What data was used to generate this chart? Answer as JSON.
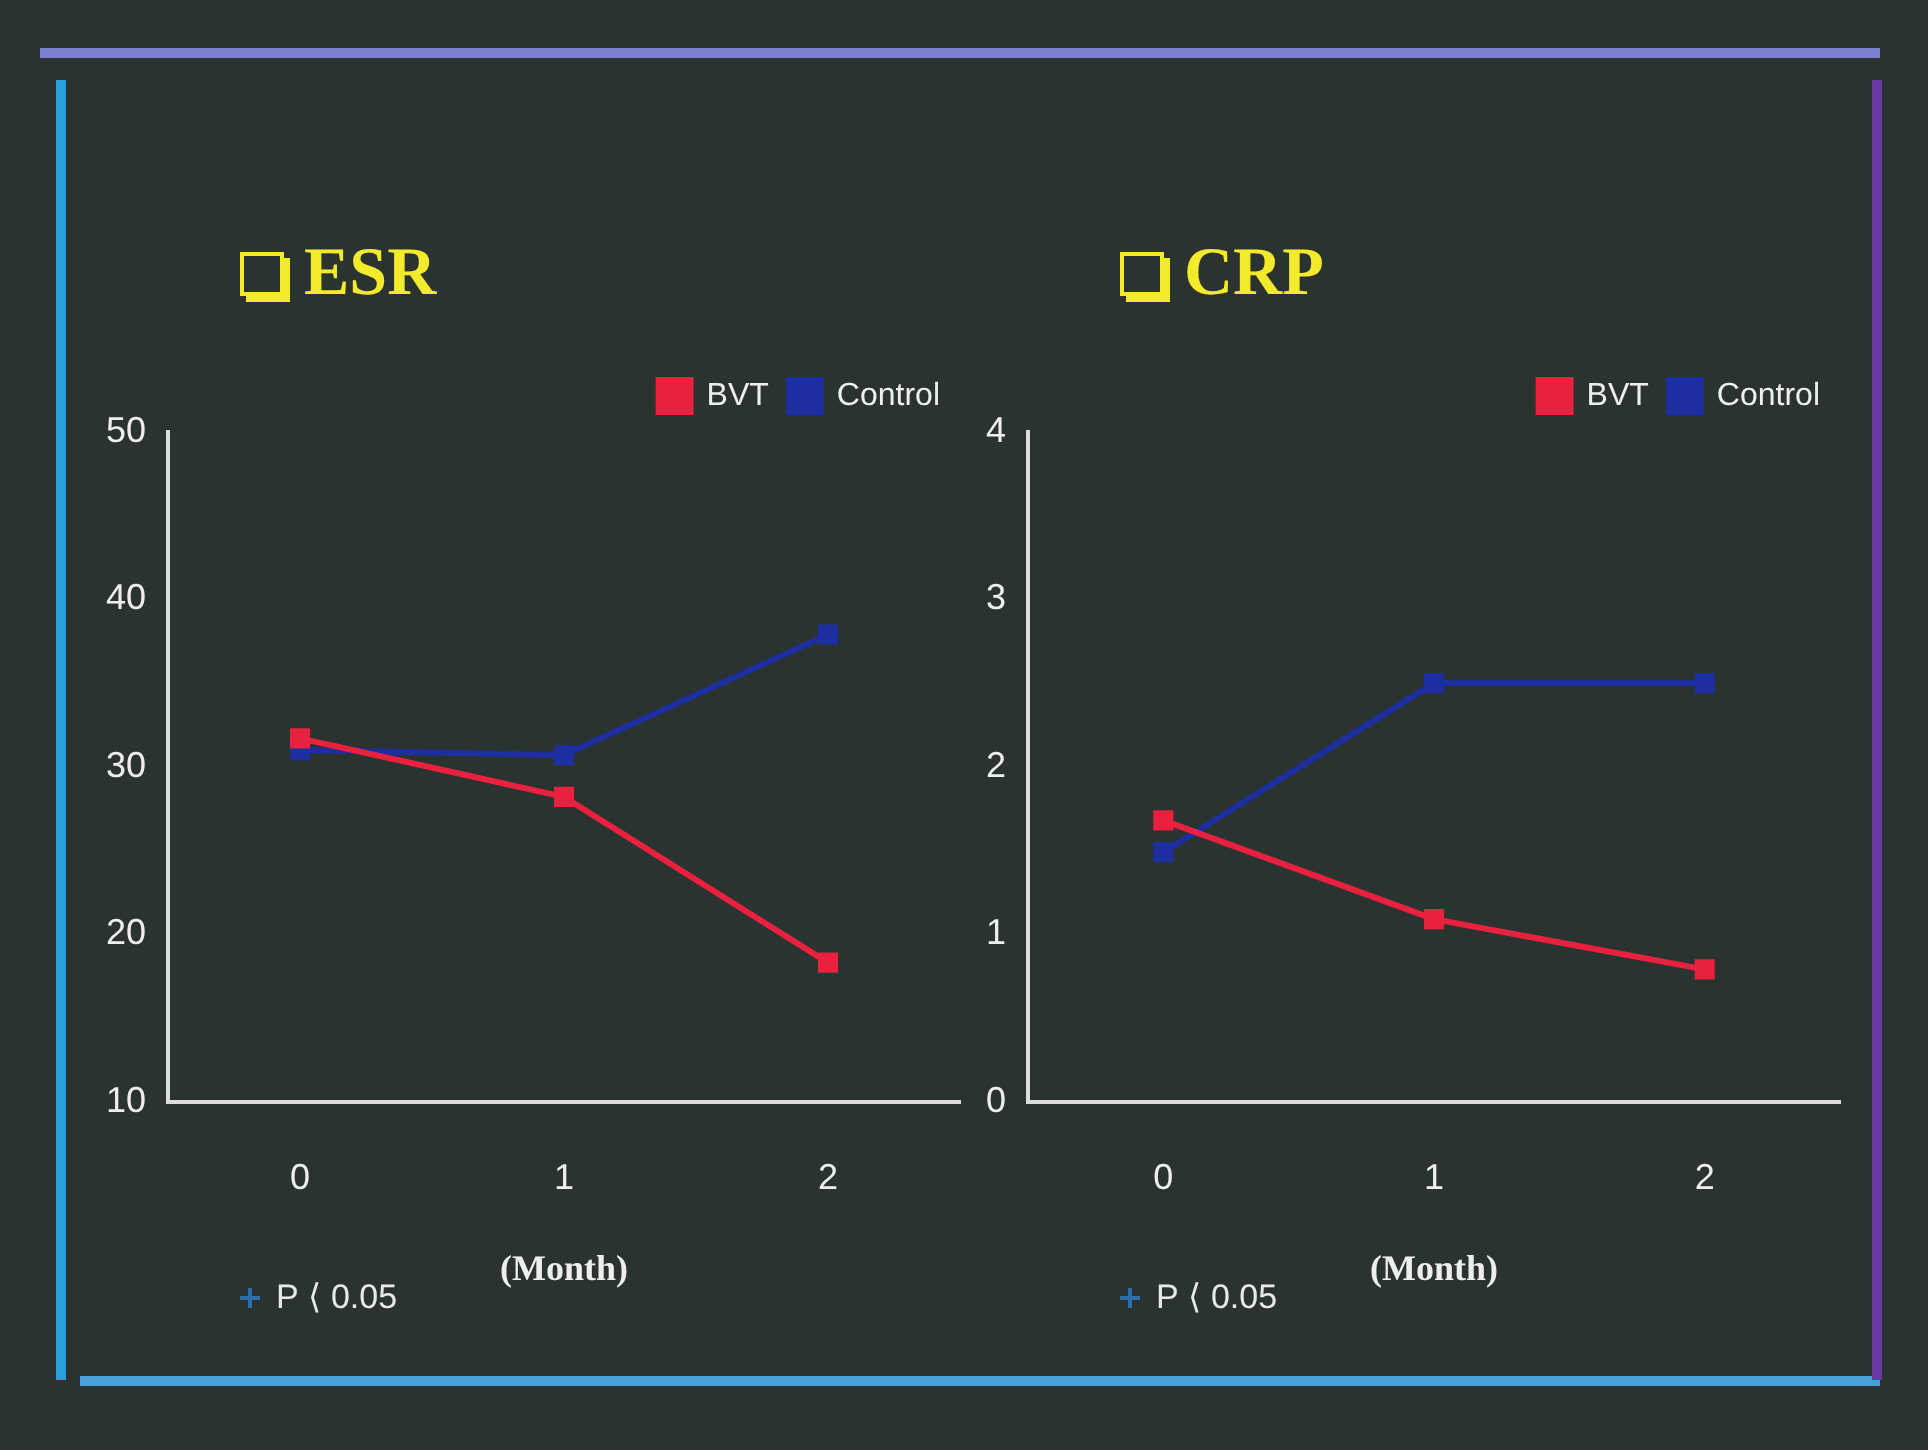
{
  "chart_data": [
    {
      "type": "line",
      "title": "ESR",
      "xlabel": "(Month)",
      "categories": [
        "0",
        "1",
        "2"
      ],
      "series": [
        {
          "name": "BVT",
          "color": "#e8213f",
          "values": [
            31.7,
            28.2,
            18.3
          ]
        },
        {
          "name": "Control",
          "color": "#1d2fa0",
          "values": [
            31.0,
            30.7,
            37.9
          ]
        }
      ],
      "ylim": [
        10,
        50
      ],
      "yticks": [
        10,
        20,
        30,
        40,
        50
      ],
      "grid": false,
      "legend": "top right",
      "marker": "square",
      "line_style": "solid",
      "annotations": [
        "P ⟨ 0.05"
      ]
    },
    {
      "type": "line",
      "title": "CRP",
      "xlabel": "(Month)",
      "categories": [
        "0",
        "1",
        "2"
      ],
      "series": [
        {
          "name": "BVT",
          "color": "#e8213f",
          "values": [
            1.68,
            1.09,
            0.79
          ]
        },
        {
          "name": "Control",
          "color": "#1d2fa0",
          "values": [
            1.49,
            2.5,
            2.5
          ]
        }
      ],
      "ylim": [
        0,
        4
      ],
      "yticks": [
        0,
        1,
        2,
        3,
        4
      ],
      "grid": false,
      "legend": "top right",
      "marker": "square",
      "line_style": "solid",
      "annotations": [
        "P ⟨ 0.05"
      ]
    }
  ]
}
